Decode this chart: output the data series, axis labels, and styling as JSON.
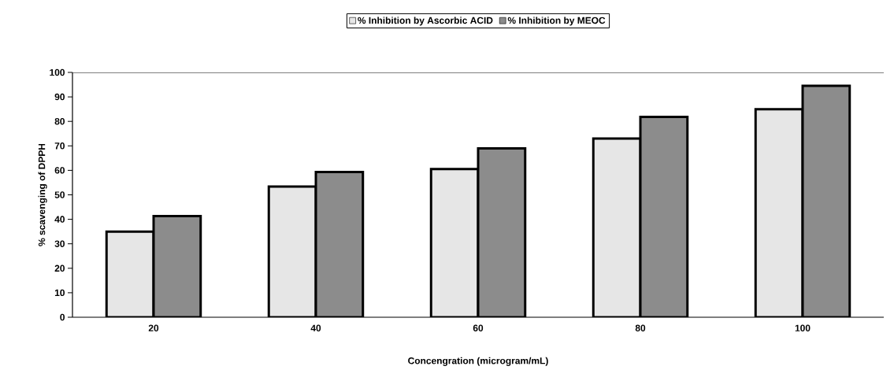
{
  "chart_data": {
    "type": "bar",
    "xlabel": "Concengration (microgram/mL)",
    "ylabel": "% scavenging of DPPH",
    "categories": [
      "20",
      "40",
      "60",
      "80",
      "100"
    ],
    "series": [
      {
        "name": "% Inhibition by Ascorbic ACID",
        "color": "#e6e6e6",
        "values": [
          35,
          53.4,
          60.5,
          73,
          85
        ]
      },
      {
        "name": "% Inhibition by MEOC",
        "color": "#8c8c8c",
        "values": [
          41.3,
          59.3,
          69,
          81.8,
          94.5
        ]
      }
    ],
    "ylim": [
      0,
      100
    ],
    "yticks": [
      0,
      10,
      20,
      30,
      40,
      50,
      60,
      70,
      80,
      90,
      100
    ],
    "grid": false,
    "legend": "top"
  }
}
